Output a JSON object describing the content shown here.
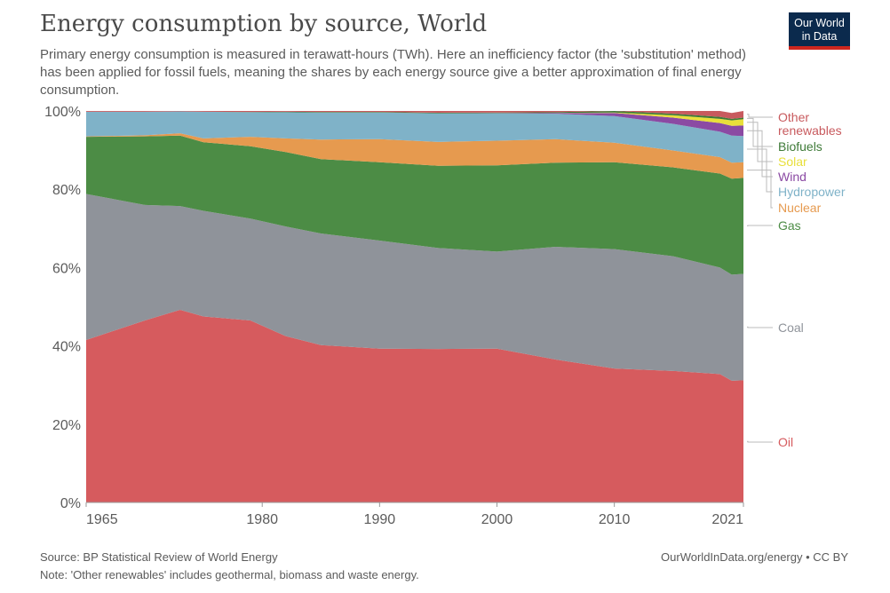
{
  "header": {
    "title": "Energy consumption by source, World",
    "subtitle": "Primary energy consumption is measured in terawatt-hours (TWh). Here an inefficiency factor (the 'substitution' method) has been applied for fossil fuels, meaning the shares by each energy source give a better approximation of final energy consumption.",
    "logo_line1": "Our World",
    "logo_line2": "in Data"
  },
  "footer": {
    "source": "Source: BP Statistical Review of World Energy",
    "note": "Note: 'Other renewables' includes geothermal, biomass and waste energy.",
    "attribution": "OurWorldInData.org/energy • CC BY"
  },
  "colors": {
    "oil": "#d65b5e",
    "coal": "#8f939a",
    "gas": "#4c8c45",
    "nuclear": "#e69a4f",
    "hydropower": "#7fb2c8",
    "wind": "#8b4aa3",
    "solar": "#e8df3a",
    "biofuels": "#3e7a37",
    "other_renewables": "#c85a5e"
  },
  "chart_data": {
    "type": "area",
    "stacked": true,
    "percent": true,
    "ylim": [
      0,
      100
    ],
    "yticks": [
      "0%",
      "20%",
      "40%",
      "60%",
      "80%",
      "100%"
    ],
    "xlim": [
      1965,
      2021
    ],
    "xticks": [
      "1965",
      "1980",
      "1990",
      "2000",
      "2010",
      "2021"
    ],
    "x": [
      1965,
      1970,
      1973,
      1975,
      1979,
      1982,
      1985,
      1990,
      1995,
      2000,
      2005,
      2010,
      2015,
      2019,
      2020,
      2021
    ],
    "series": [
      {
        "name": "Oil",
        "color_key": "oil",
        "values": [
          41.5,
          46.5,
          49.2,
          47.5,
          46.5,
          42.5,
          40.2,
          39.3,
          39.2,
          39.3,
          36.5,
          34.2,
          33.6,
          32.8,
          31.1,
          31.2
        ]
      },
      {
        "name": "Coal",
        "color_key": "coal",
        "values": [
          37.3,
          29.5,
          26.5,
          27.0,
          26.0,
          28.0,
          28.5,
          27.6,
          25.8,
          24.8,
          28.8,
          30.5,
          29.3,
          27.2,
          27.1,
          27.2
        ]
      },
      {
        "name": "Gas",
        "color_key": "gas",
        "values": [
          14.6,
          17.5,
          18.0,
          17.5,
          18.5,
          19.0,
          19.0,
          20.0,
          21.0,
          22.0,
          21.5,
          22.2,
          22.7,
          24.0,
          24.5,
          24.5
        ]
      },
      {
        "name": "Nuclear",
        "color_key": "nuclear",
        "values": [
          0.1,
          0.3,
          0.6,
          1.0,
          2.4,
          3.5,
          5.0,
          5.9,
          6.1,
          6.3,
          6.0,
          5.0,
          4.3,
          4.2,
          4.1,
          4.0
        ]
      },
      {
        "name": "Hydropower",
        "color_key": "hydropower",
        "values": [
          6.3,
          6.0,
          5.6,
          6.8,
          6.3,
          6.7,
          6.9,
          6.8,
          7.3,
          7.0,
          6.5,
          6.8,
          6.8,
          6.5,
          6.9,
          6.7
        ]
      },
      {
        "name": "Wind",
        "color_key": "wind",
        "values": [
          0.0,
          0.0,
          0.0,
          0.0,
          0.0,
          0.0,
          0.0,
          0.0,
          0.0,
          0.06,
          0.2,
          0.8,
          1.6,
          2.2,
          2.5,
          2.7
        ]
      },
      {
        "name": "Solar",
        "color_key": "solar",
        "values": [
          0.0,
          0.0,
          0.0,
          0.0,
          0.0,
          0.0,
          0.0,
          0.0,
          0.0,
          0.0,
          0.0,
          0.1,
          0.6,
          1.1,
          1.4,
          1.6
        ]
      },
      {
        "name": "Biofuels",
        "color_key": "biofuels",
        "values": [
          0.0,
          0.0,
          0.0,
          0.0,
          0.05,
          0.1,
          0.15,
          0.15,
          0.15,
          0.15,
          0.2,
          0.4,
          0.4,
          0.5,
          0.4,
          0.4
        ]
      },
      {
        "name": "Other renewables",
        "color_key": "other_renewables",
        "values": [
          0.2,
          0.2,
          0.1,
          0.2,
          0.25,
          0.2,
          0.25,
          0.25,
          0.45,
          0.39,
          0.3,
          0.0,
          0.7,
          1.5,
          1.5,
          1.7
        ]
      }
    ],
    "legend": [
      {
        "label": "Other\nrenewables",
        "line1": "Other",
        "line2": "renewables",
        "color_key": "other_renewables"
      },
      {
        "label": "Biofuels",
        "color_key": "biofuels"
      },
      {
        "label": "Solar",
        "color_key": "solar"
      },
      {
        "label": "Wind",
        "color_key": "wind"
      },
      {
        "label": "Hydropower",
        "color_key": "hydropower"
      },
      {
        "label": "Nuclear",
        "color_key": "nuclear"
      },
      {
        "label": "Gas",
        "color_key": "gas"
      },
      {
        "label": "Coal",
        "color_key": "coal"
      },
      {
        "label": "Oil",
        "color_key": "oil"
      }
    ],
    "legend_placement": "right"
  }
}
